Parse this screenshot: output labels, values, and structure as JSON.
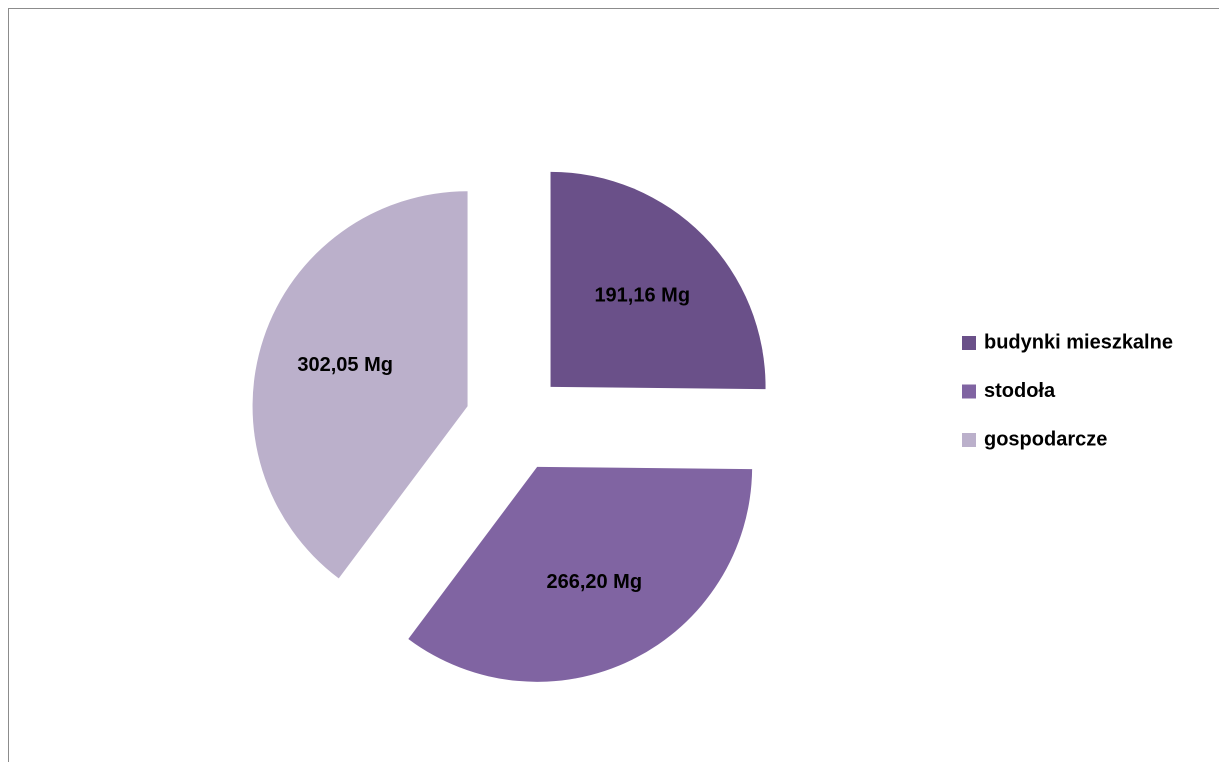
{
  "chart_data": {
    "type": "pie",
    "categories": [
      "budynki mieszkalne",
      "stodoła",
      "gospodarcze"
    ],
    "values": [
      191.16,
      266.2,
      302.05
    ],
    "value_labels": [
      "191,16 Mg",
      "266,20 Mg",
      "302,05 Mg"
    ],
    "colors": [
      "#6a5089",
      "#8064a2",
      "#bbb0cb"
    ],
    "legend": "right"
  }
}
